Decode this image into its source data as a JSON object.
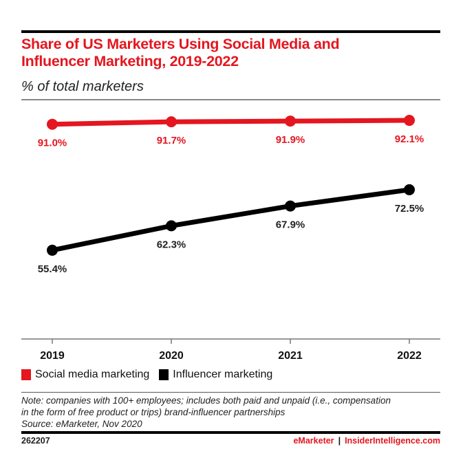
{
  "chart_data": {
    "type": "line",
    "title": "Share of US Marketers Using Social Media and Influencer Marketing, 2019-2022",
    "subtitle": "% of total marketers",
    "x": [
      "2019",
      "2020",
      "2021",
      "2022"
    ],
    "series": [
      {
        "name": "Social media marketing",
        "color": "#e4161f",
        "values": [
          91.0,
          91.7,
          91.9,
          92.1
        ],
        "labels": [
          "91.0%",
          "91.7%",
          "91.9%",
          "92.1%"
        ]
      },
      {
        "name": "Influencer marketing",
        "color": "#000000",
        "values": [
          55.4,
          62.3,
          67.9,
          72.5
        ],
        "labels": [
          "55.4%",
          "62.3%",
          "67.9%",
          "72.5%"
        ]
      }
    ],
    "xlabel": "",
    "ylabel": "",
    "grid": false,
    "legend": "bottom-left"
  },
  "title_lines": [
    "Share of US Marketers Using Social Media and",
    "Influencer Marketing, 2019-2022"
  ],
  "note": {
    "lines": [
      "Note: companies with 100+ employees; includes both paid and unpaid (i.e., compensation",
      "in the form of free product or trips) brand-influencer partnerships",
      "Source: eMarketer, Nov 2020"
    ]
  },
  "footer": {
    "chart_id": "262207",
    "brand_left": "eMarketer",
    "separator": "|",
    "brand_right": "InsiderIntelligence.com"
  }
}
